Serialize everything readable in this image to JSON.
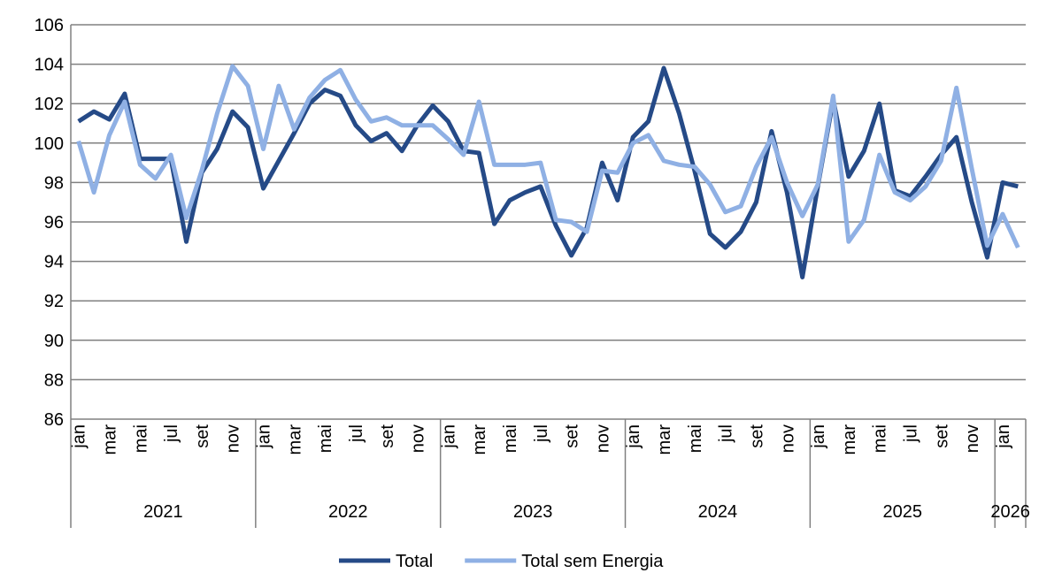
{
  "chart_data": {
    "type": "line",
    "categories": [
      "jan",
      null,
      "mar",
      null,
      "mai",
      null,
      "jul",
      null,
      "set",
      null,
      "nov",
      null,
      "jan",
      null,
      "mar",
      null,
      "mai",
      null,
      "jul",
      null,
      "set",
      null,
      "nov",
      null,
      "jan",
      null,
      "mar",
      null,
      "mai",
      null,
      "jul",
      null,
      "set",
      null,
      "nov",
      null,
      "jan",
      null,
      "mar",
      null,
      "mai",
      null,
      "jul",
      null,
      "set",
      null,
      "nov",
      null,
      "jan",
      null,
      "mar",
      null,
      "mai",
      null,
      "jul",
      null,
      "set",
      null,
      "nov",
      null,
      "jan",
      null
    ],
    "year_groups": [
      {
        "label": "2021",
        "months": 12
      },
      {
        "label": "2022",
        "months": 12
      },
      {
        "label": "2023",
        "months": 12
      },
      {
        "label": "2024",
        "months": 12
      },
      {
        "label": "2025",
        "months": 12
      },
      {
        "label": "2026",
        "months": 2
      }
    ],
    "series": [
      {
        "name": "Total",
        "color": "#254a87",
        "values": [
          101.1,
          101.6,
          101.2,
          102.5,
          99.2,
          99.2,
          99.2,
          95.0,
          98.5,
          99.7,
          101.6,
          100.8,
          97.7,
          99.1,
          100.5,
          102.0,
          102.7,
          102.4,
          100.9,
          100.1,
          100.5,
          99.6,
          100.9,
          101.9,
          101.1,
          99.6,
          99.5,
          95.9,
          97.1,
          97.5,
          97.8,
          95.8,
          94.3,
          95.7,
          99.0,
          97.1,
          100.3,
          101.1,
          103.8,
          101.5,
          98.6,
          95.4,
          94.7,
          95.5,
          97.0,
          100.6,
          97.5,
          93.2,
          97.8,
          102.2,
          98.3,
          99.6,
          102.0,
          97.6,
          97.3,
          98.3,
          99.4,
          100.3,
          97.0,
          94.2,
          98.0,
          97.8
        ]
      },
      {
        "name": "Total sem Energia",
        "color": "#8fb0e4",
        "values": [
          100.1,
          97.5,
          100.4,
          102.1,
          98.9,
          98.2,
          99.4,
          96.2,
          98.6,
          101.5,
          103.9,
          102.9,
          99.7,
          102.9,
          100.7,
          102.3,
          103.2,
          103.7,
          102.2,
          101.1,
          101.3,
          100.9,
          100.9,
          100.9,
          100.2,
          99.4,
          102.1,
          98.9,
          98.9,
          98.9,
          99.0,
          96.1,
          96.0,
          95.5,
          98.6,
          98.5,
          100.0,
          100.4,
          99.1,
          98.9,
          98.8,
          97.9,
          96.5,
          96.8,
          98.8,
          100.3,
          98.0,
          96.3,
          97.9,
          102.4,
          95.0,
          96.1,
          99.4,
          97.5,
          97.1,
          97.8,
          99.1,
          102.8,
          98.7,
          94.8,
          96.4,
          94.7
        ]
      }
    ],
    "ylim": [
      86,
      106
    ],
    "yticks": [
      86,
      88,
      90,
      92,
      94,
      96,
      98,
      100,
      102,
      104,
      106
    ],
    "grid": true,
    "legend": "bottom"
  }
}
